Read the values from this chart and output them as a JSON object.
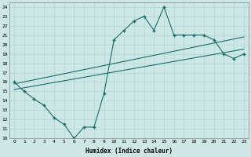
{
  "xlabel": "Humidex (Indice chaleur)",
  "xlim": [
    -0.5,
    23.5
  ],
  "ylim": [
    10,
    24.5
  ],
  "yticks": [
    10,
    11,
    12,
    13,
    14,
    15,
    16,
    17,
    18,
    19,
    20,
    21,
    22,
    23,
    24
  ],
  "xticks": [
    0,
    1,
    2,
    3,
    4,
    5,
    6,
    7,
    8,
    9,
    10,
    11,
    12,
    13,
    14,
    15,
    16,
    17,
    18,
    19,
    20,
    21,
    22,
    23
  ],
  "bg_color": "#cde8e4",
  "line_color": "#1a6b6b",
  "line1_x": [
    0,
    1,
    2,
    3,
    4,
    5,
    6,
    7,
    8,
    9,
    10,
    11,
    12,
    13,
    14,
    15,
    16,
    17,
    18,
    19,
    20,
    21,
    22,
    23
  ],
  "line1_y": [
    16,
    15,
    14.2,
    13.5,
    12.2,
    11.5,
    10.0,
    11.2,
    11.2,
    14.8,
    20.5,
    21.5,
    22.5,
    23.0,
    21.5,
    24.0,
    21.0,
    21.0,
    21.0,
    21.0,
    20.5,
    19.0,
    18.5,
    19.0
  ],
  "line2_x": [
    0,
    23
  ],
  "line2_y": [
    15.8,
    20.8
  ],
  "line3_x": [
    0,
    23
  ],
  "line3_y": [
    15.2,
    19.5
  ]
}
